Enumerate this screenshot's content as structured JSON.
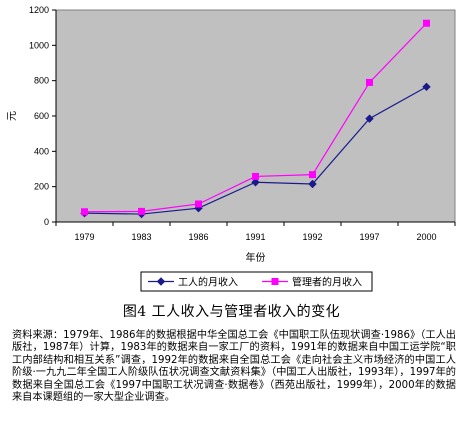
{
  "chart_data": {
    "type": "line",
    "categories": [
      "1979",
      "1983",
      "1986",
      "1991",
      "1992",
      "1997",
      "2000"
    ],
    "series": [
      {
        "name": "工人的月收入",
        "values": [
          50,
          45,
          78,
          225,
          215,
          585,
          765
        ],
        "color": "#1a1a8c",
        "marker": "diamond"
      },
      {
        "name": "管理者的月收入",
        "values": [
          58,
          60,
          102,
          258,
          268,
          790,
          1125
        ],
        "color": "#ff00ff",
        "marker": "square"
      }
    ],
    "xlabel": "年份",
    "ylabel": "元",
    "ylim": [
      0,
      1200
    ],
    "yticks": [
      0,
      200,
      400,
      600,
      800,
      1000,
      1200
    ],
    "grid": false,
    "plot_background": "#c0c0c0",
    "legend_position": "bottom"
  },
  "caption": "图4 工人收入与管理者收入的变化",
  "source_note": "资料来源：1979年、1986年的数据根据中华全国总工会《中国职工队伍现状调查·1986》（工人出版社，1987年）计算，1983年的数据来自一家工厂的资料，1991年的数据来自中国工运学院“职工内部结构和相互关系”调查，1992年的数据来自全国总工会《走向社会主义市场经济的中国工人阶级·一九九二年全国工人阶级队伍状况调查文献资料集》（中国工人出版社，1993年），1997年的数据来自全国总工会《1997中国职工状况调查·数据卷》（西苑出版社，1999年），2000年的数据来自本课题组的一家大型企业调查。"
}
